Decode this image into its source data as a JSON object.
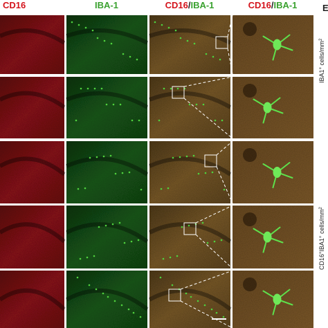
{
  "headers": [
    {
      "parts": [
        "CD16"
      ]
    },
    {
      "parts": [
        "IBA-1"
      ]
    },
    {
      "parts": [
        "CD16",
        "/",
        "IBA-1"
      ]
    },
    {
      "parts": [
        "CD16",
        "/",
        "IBA-1"
      ]
    }
  ],
  "side": {
    "panel_letter": "E",
    "label_top": {
      "parts": [
        "IBA1",
        "+",
        " cells/mm",
        "2"
      ]
    },
    "label_bottom": {
      "parts": [
        "CD16",
        "+",
        "IBA1",
        "+",
        " cells/mm",
        "2"
      ]
    }
  }
}
